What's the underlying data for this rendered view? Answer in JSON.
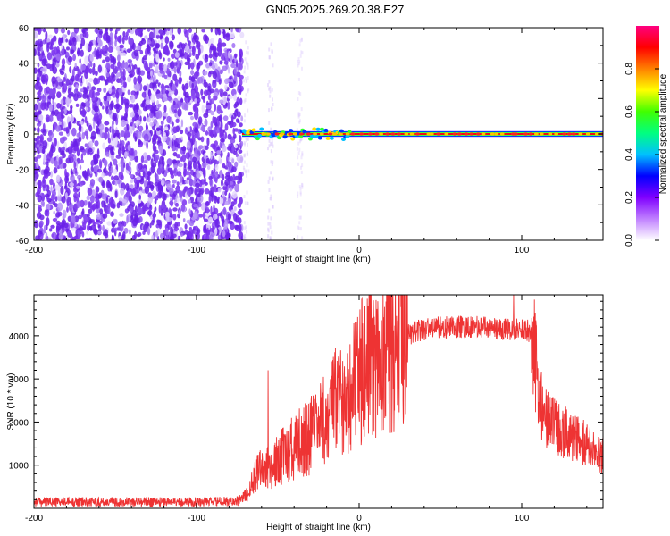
{
  "title": "GN05.2025.269.20.38.E27",
  "chart_data": [
    {
      "type": "heatmap",
      "xlabel": "Height of straight line (km)",
      "ylabel": "Frequency (Hz)",
      "xlim": [
        -200,
        150
      ],
      "ylim": [
        -60,
        60
      ],
      "x_ticks": [
        -200,
        -100,
        0,
        100
      ],
      "y_ticks": [
        -60,
        -40,
        -20,
        0,
        20,
        40,
        60
      ],
      "colorbar": {
        "label": "Normalized spectral amplitude",
        "range": [
          0,
          1
        ],
        "ticks": [
          "0.0",
          "0.2",
          "0.4",
          "0.6",
          "0.8"
        ],
        "colormap": [
          "#ffffff",
          "#c080ff",
          "#8000ff",
          "#0000ff",
          "#00c0ff",
          "#00ff80",
          "#40ff00",
          "#ffff00",
          "#ff8000",
          "#ff0000",
          "#ff0080"
        ]
      },
      "features": [
        {
          "x_range": [
            -200,
            -72
          ],
          "y_range": [
            -60,
            60
          ],
          "amplitude": 0.2,
          "description_pattern": "broadband noise"
        },
        {
          "x_range": [
            -72,
            150
          ],
          "y_center": 0,
          "amplitude": 0.9,
          "description_pattern": "narrow carrier"
        }
      ]
    },
    {
      "type": "line",
      "xlabel": "Height of straight line (km)",
      "ylabel": "SNR (10 * v/v)",
      "xlim": [
        -200,
        150
      ],
      "ylim": [
        0,
        4950
      ],
      "x_ticks": [
        -200,
        -100,
        0,
        100
      ],
      "y_ticks": [
        1000,
        2000,
        3000,
        4000
      ],
      "series": [
        {
          "color": "#ee3333",
          "envelope": [
            [
              -200,
              150
            ],
            [
              -150,
              150
            ],
            [
              -100,
              150
            ],
            [
              -75,
              160
            ],
            [
              -68,
              350
            ],
            [
              -62,
              1000
            ],
            [
              -55,
              900
            ],
            [
              -45,
              1300
            ],
            [
              -35,
              1600
            ],
            [
              -25,
              1800
            ],
            [
              -15,
              2400
            ],
            [
              -5,
              2800
            ],
            [
              5,
              3300
            ],
            [
              15,
              3700
            ],
            [
              25,
              3950
            ],
            [
              35,
              4100
            ],
            [
              45,
              4200
            ],
            [
              60,
              4200
            ],
            [
              75,
              4200
            ],
            [
              90,
              4150
            ],
            [
              100,
              4150
            ],
            [
              106,
              4100
            ],
            [
              109,
              3300
            ],
            [
              113,
              2100
            ],
            [
              120,
              1900
            ],
            [
              130,
              1700
            ],
            [
              140,
              1450
            ],
            [
              150,
              1200
            ]
          ],
          "spikes": [
            [
              -56,
              3200
            ],
            [
              -42,
              1950
            ],
            [
              -30,
              2450
            ],
            [
              -18,
              2800
            ],
            [
              -13,
              3050
            ],
            [
              33,
              4250
            ],
            [
              63,
              4450
            ],
            [
              95,
              4950
            ],
            [
              138,
              2050
            ]
          ]
        }
      ]
    }
  ]
}
